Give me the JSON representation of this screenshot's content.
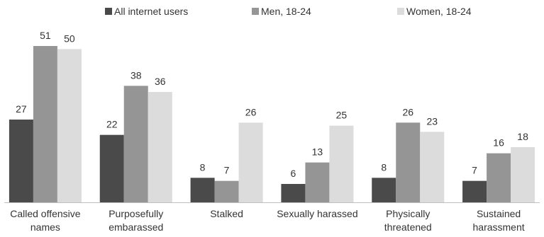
{
  "chart_data": {
    "type": "bar",
    "categories": [
      [
        "Called offensive",
        "names"
      ],
      [
        "Purposefully",
        "embarassed"
      ],
      [
        "Stalked"
      ],
      [
        "Sexually harassed"
      ],
      [
        "Physically",
        "threatened"
      ],
      [
        "Sustained",
        "harassment"
      ]
    ],
    "series": [
      {
        "name": "All internet users",
        "color": "#4a4a4a",
        "values": [
          27,
          22,
          8,
          6,
          8,
          7
        ]
      },
      {
        "name": "Men, 18-24",
        "color": "#959595",
        "values": [
          51,
          38,
          7,
          13,
          26,
          16
        ]
      },
      {
        "name": "Women, 18-24",
        "color": "#dcdcdc",
        "values": [
          50,
          36,
          26,
          25,
          23,
          18
        ]
      }
    ],
    "ylim": [
      0,
      51
    ],
    "legend_position": "top",
    "grid": false,
    "baseline_color": "#bfbfbf"
  }
}
